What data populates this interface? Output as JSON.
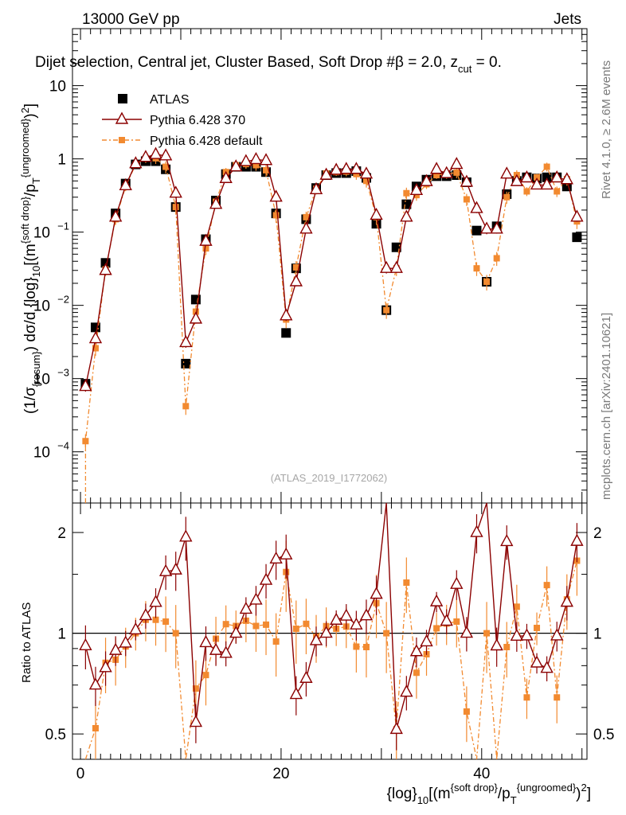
{
  "header": {
    "energy": "13000 GeV pp",
    "category": "Jets",
    "title": "Dijet selection, Central jet, Cluster Based, Soft Drop #β = 2.0, z",
    "title_sub": "cut",
    "title_tail": " = 0.",
    "analysis_id": "(ATLAS_2019_I1772062)"
  },
  "side": {
    "rivet": "Rivet 4.1.0, ≥ 2.6M events",
    "mcplots": "mcplots.cern.ch [arXiv:2401.10621]"
  },
  "legend": [
    {
      "label": "ATLAS",
      "color": "#000000",
      "marker": "square"
    },
    {
      "label": "Pythia 6.428 370",
      "color": "#8b0000",
      "marker": "triangle-open"
    },
    {
      "label": "Pythia 6.428 default",
      "color": "#f28a30",
      "marker": "square-small"
    }
  ],
  "chart_data": [
    {
      "type": "scatter",
      "panel": "main",
      "ylabel": {
        "prefix": "(1/σ",
        "sub1": "{resum}",
        "mid": ") dσ/d {log}",
        "sub2": "10",
        "tail1": "[(m",
        "sup1": "{soft drop}",
        "tail2": "/p",
        "sub3": "T",
        "sup2": "{ungroomed}",
        "tail3": ")",
        "sup3": "2",
        "tail4": "]"
      },
      "yscale": "log",
      "ylim": [
        2e-05,
        60
      ],
      "xlim": [
        -0.8,
        50.5
      ],
      "ytick_values": [
        0.0001,
        0.001,
        0.01,
        0.1,
        1,
        10
      ],
      "ytick_labels": [
        {
          "base": "10",
          "exp": "−4"
        },
        {
          "base": "10",
          "exp": "−3"
        },
        {
          "base": "10",
          "exp": "−2"
        },
        {
          "base": "10",
          "exp": "−1"
        },
        {
          "base": "1",
          "exp": ""
        },
        {
          "base": "10",
          "exp": ""
        }
      ],
      "series": [
        {
          "name": "ATLAS",
          "points": [
            [
              0.5,
              0.00085
            ],
            [
              1.5,
              0.005
            ],
            [
              2.5,
              0.038
            ],
            [
              3.5,
              0.18
            ],
            [
              4.5,
              0.46
            ],
            [
              5.5,
              0.84
            ],
            [
              6.5,
              0.93
            ],
            [
              7.5,
              0.93
            ],
            [
              8.5,
              0.72
            ],
            [
              9.5,
              0.22
            ],
            [
              10.5,
              0.0016
            ],
            [
              11.5,
              0.012
            ],
            [
              12.5,
              0.08
            ],
            [
              13.5,
              0.27
            ],
            [
              14.5,
              0.62
            ],
            [
              15.5,
              0.78
            ],
            [
              16.5,
              0.78
            ],
            [
              17.5,
              0.78
            ],
            [
              18.5,
              0.66
            ],
            [
              19.5,
              0.18
            ],
            [
              20.5,
              0.0042
            ],
            [
              21.5,
              0.032
            ],
            [
              22.5,
              0.15
            ],
            [
              23.5,
              0.4
            ],
            [
              24.5,
              0.6
            ],
            [
              25.5,
              0.64
            ],
            [
              26.5,
              0.64
            ],
            [
              27.5,
              0.68
            ],
            [
              28.5,
              0.55
            ],
            [
              29.5,
              0.13
            ],
            [
              30.5,
              0.0086
            ],
            [
              31.5,
              0.062
            ],
            [
              32.5,
              0.24
            ],
            [
              33.5,
              0.42
            ],
            [
              34.5,
              0.52
            ],
            [
              35.5,
              0.58
            ],
            [
              36.5,
              0.58
            ],
            [
              37.5,
              0.6
            ],
            [
              38.5,
              0.48
            ],
            [
              39.5,
              0.105
            ],
            [
              40.5,
              0.021
            ],
            [
              41.5,
              0.12
            ],
            [
              42.5,
              0.33
            ],
            [
              43.5,
              0.5
            ],
            [
              44.5,
              0.56
            ],
            [
              45.5,
              0.54
            ],
            [
              46.5,
              0.56
            ],
            [
              47.5,
              0.56
            ],
            [
              48.5,
              0.42
            ],
            [
              49.5,
              0.085
            ]
          ]
        },
        {
          "name": "Pythia 6.428 370",
          "points": [
            [
              0.5,
              0.00078
            ],
            [
              1.5,
              0.0035
            ],
            [
              2.5,
              0.03
            ],
            [
              3.5,
              0.16
            ],
            [
              4.5,
              0.43
            ],
            [
              5.5,
              0.86
            ],
            [
              6.5,
              1.05
            ],
            [
              7.5,
              1.15
            ],
            [
              8.5,
              1.1
            ],
            [
              9.5,
              0.34
            ],
            [
              10.5,
              0.0031
            ],
            [
              11.5,
              0.0065
            ],
            [
              12.5,
              0.075
            ],
            [
              13.5,
              0.24
            ],
            [
              14.5,
              0.54
            ],
            [
              15.5,
              0.78
            ],
            [
              16.5,
              0.92
            ],
            [
              17.5,
              0.98
            ],
            [
              18.5,
              0.95
            ],
            [
              19.5,
              0.3
            ],
            [
              20.5,
              0.0072
            ],
            [
              21.5,
              0.021
            ],
            [
              22.5,
              0.11
            ],
            [
              23.5,
              0.38
            ],
            [
              24.5,
              0.6
            ],
            [
              25.5,
              0.7
            ],
            [
              26.5,
              0.72
            ],
            [
              27.5,
              0.72
            ],
            [
              28.5,
              0.62
            ],
            [
              29.5,
              0.17
            ],
            [
              30.5,
              0.032
            ],
            [
              31.5,
              0.032
            ],
            [
              32.5,
              0.16
            ],
            [
              33.5,
              0.37
            ],
            [
              34.5,
              0.49
            ],
            [
              35.5,
              0.72
            ],
            [
              36.5,
              0.63
            ],
            [
              37.5,
              0.84
            ],
            [
              38.5,
              0.48
            ],
            [
              39.5,
              0.21
            ],
            [
              40.5,
              0.11
            ],
            [
              41.5,
              0.11
            ],
            [
              42.5,
              0.62
            ],
            [
              43.5,
              0.49
            ],
            [
              44.5,
              0.55
            ],
            [
              45.5,
              0.44
            ],
            [
              46.5,
              0.44
            ],
            [
              47.5,
              0.55
            ],
            [
              48.5,
              0.52
            ],
            [
              49.5,
              0.16
            ]
          ]
        },
        {
          "name": "Pythia 6.428 default",
          "points": [
            [
              0.5,
              0.00014
            ],
            [
              1.5,
              0.0026
            ],
            [
              2.5,
              0.031
            ],
            [
              3.5,
              0.15
            ],
            [
              4.5,
              0.42
            ],
            [
              5.5,
              0.84
            ],
            [
              6.5,
              1.02
            ],
            [
              7.5,
              1.02
            ],
            [
              8.5,
              0.78
            ],
            [
              9.5,
              0.22
            ],
            [
              10.5,
              0.00042
            ],
            [
              11.5,
              0.0082
            ],
            [
              12.5,
              0.06
            ],
            [
              13.5,
              0.26
            ],
            [
              14.5,
              0.66
            ],
            [
              15.5,
              0.82
            ],
            [
              16.5,
              0.85
            ],
            [
              17.5,
              0.82
            ],
            [
              18.5,
              0.7
            ],
            [
              19.5,
              0.17
            ],
            [
              20.5,
              0.0064
            ],
            [
              21.5,
              0.033
            ],
            [
              22.5,
              0.16
            ],
            [
              23.5,
              0.39
            ],
            [
              24.5,
              0.63
            ],
            [
              25.5,
              0.66
            ],
            [
              26.5,
              0.67
            ],
            [
              27.5,
              0.62
            ],
            [
              28.5,
              0.5
            ],
            [
              29.5,
              0.16
            ],
            [
              30.5,
              0.0086
            ],
            [
              31.5,
              0.032
            ],
            [
              32.5,
              0.34
            ],
            [
              33.5,
              0.32
            ],
            [
              34.5,
              0.45
            ],
            [
              35.5,
              0.6
            ],
            [
              36.5,
              0.62
            ],
            [
              37.5,
              0.65
            ],
            [
              38.5,
              0.28
            ],
            [
              39.5,
              0.032
            ],
            [
              40.5,
              0.021
            ],
            [
              41.5,
              0.044
            ],
            [
              42.5,
              0.3
            ],
            [
              43.5,
              0.6
            ],
            [
              44.5,
              0.36
            ],
            [
              45.5,
              0.56
            ],
            [
              46.5,
              0.78
            ],
            [
              47.5,
              0.36
            ],
            [
              48.5,
              0.53
            ],
            [
              49.5,
              0.14
            ]
          ]
        }
      ]
    },
    {
      "type": "scatter",
      "panel": "ratio",
      "ylabel": "Ratio to ATLAS",
      "yscale": "log",
      "ylim": [
        0.42,
        2.45
      ],
      "xlim": [
        -0.8,
        50.5
      ],
      "xlabel": {
        "prefix": "{log}",
        "sub1": "10",
        "tail1": "[(m",
        "sup1": "{soft drop}",
        "tail2": "/p",
        "sub2": "T",
        "sup2": "{ungroomed}",
        "tail3": ")",
        "sup3": "2",
        "tail4": "]"
      },
      "xtick_values": [
        0,
        20,
        40
      ],
      "xtick_labels": [
        "0",
        "20",
        "40"
      ],
      "ytick_values": [
        0.5,
        1,
        2
      ],
      "ytick_labels": [
        "0.5",
        "1",
        "2"
      ],
      "reference_line": 1
    }
  ]
}
